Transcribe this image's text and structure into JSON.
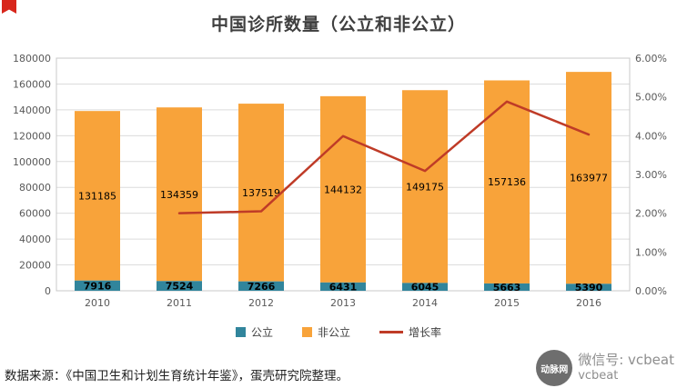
{
  "title": "中国诊所数量（公立和非公立）",
  "legend": [
    {
      "label": "公立",
      "color": "#31859C",
      "type": "bar"
    },
    {
      "label": "非公立",
      "color": "#F8A33A",
      "type": "bar"
    },
    {
      "label": "增长率",
      "color": "#BF3B27",
      "type": "line"
    }
  ],
  "footer": {
    "source": "数据来源：《中国卫生和计划生育统计年鉴》，蛋壳研究院整理。"
  },
  "watermark": {
    "logo_text": "动脉网",
    "wechat": "微信号: vcbeat",
    "site": "vcbeat"
  },
  "chart_data": {
    "type": "bar",
    "stacked": true,
    "title": "中国诊所数量（公立和非公立）",
    "categories": [
      "2010",
      "2011",
      "2012",
      "2013",
      "2014",
      "2015",
      "2016"
    ],
    "series": [
      {
        "name": "公立",
        "type": "bar",
        "axis": "left",
        "color": "#31859C",
        "values": [
          7916,
          7524,
          7266,
          6431,
          6045,
          5663,
          5390
        ]
      },
      {
        "name": "非公立",
        "type": "bar",
        "axis": "left",
        "color": "#F8A33A",
        "values": [
          131185,
          134359,
          137519,
          144132,
          149175,
          157136,
          163977
        ]
      },
      {
        "name": "增长率",
        "type": "line",
        "axis": "right",
        "color": "#BF3B27",
        "values": [
          null,
          2.0,
          2.05,
          3.99,
          3.09,
          4.88,
          4.03
        ]
      }
    ],
    "y_left": {
      "min": 0,
      "max": 180000,
      "step": 20000
    },
    "y_right": {
      "min": 0,
      "max": 6,
      "step": 1,
      "format": "percent"
    },
    "grid": true,
    "legend_position": "bottom"
  }
}
